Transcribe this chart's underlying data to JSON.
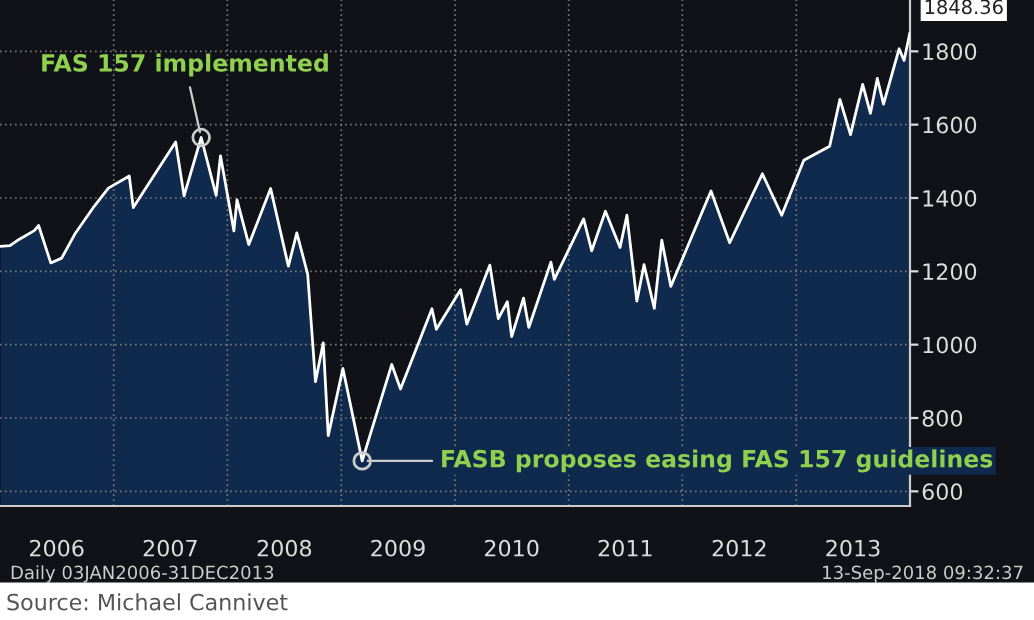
{
  "chart_data": {
    "type": "area",
    "x": [
      "2006-01-03",
      "2006-02-02",
      "2006-03-03",
      "2006-04-21",
      "2006-05-05",
      "2006-06-13",
      "2006-07-18",
      "2006-08-31",
      "2006-10-31",
      "2006-12-15",
      "2007-02-20",
      "2007-03-05",
      "2007-07-19",
      "2007-08-15",
      "2007-10-09",
      "2007-11-26",
      "2007-12-10",
      "2008-01-22",
      "2008-02-01",
      "2008-03-10",
      "2008-05-19",
      "2008-07-15",
      "2008-08-11",
      "2008-09-15",
      "2008-10-10",
      "2008-11-04",
      "2008-11-20",
      "2009-01-06",
      "2009-03-09",
      "2009-06-12",
      "2009-07-10",
      "2009-10-19",
      "2009-11-02",
      "2010-01-19",
      "2010-02-08",
      "2010-04-23",
      "2010-05-20",
      "2010-06-18",
      "2010-07-02",
      "2010-08-09",
      "2010-08-26",
      "2010-11-05",
      "2010-11-16",
      "2011-02-18",
      "2011-03-16",
      "2011-04-29",
      "2011-06-15",
      "2011-07-07",
      "2011-08-08",
      "2011-08-31",
      "2011-10-03",
      "2011-10-27",
      "2011-11-25",
      "2012-04-02",
      "2012-06-01",
      "2012-09-14",
      "2012-11-15",
      "2013-01-25",
      "2013-04-18",
      "2013-05-21",
      "2013-06-24",
      "2013-08-02",
      "2013-08-27",
      "2013-09-18",
      "2013-10-08",
      "2013-11-27",
      "2013-12-13",
      "2013-12-31"
    ],
    "series": [
      {
        "color": "#ffffff",
        "values": [
          1268,
          1270,
          1287,
          1311,
          1325,
          1223,
          1236,
          1304,
          1378,
          1427,
          1460,
          1374,
          1553,
          1406,
          1565,
          1407,
          1515,
          1310,
          1395,
          1273,
          1426,
          1214,
          1305,
          1192,
          899,
          1005,
          752,
          935,
          683,
          946,
          879,
          1098,
          1042,
          1150,
          1056,
          1217,
          1071,
          1117,
          1022,
          1127,
          1047,
          1225,
          1178,
          1343,
          1256,
          1364,
          1265,
          1353,
          1119,
          1218,
          1099,
          1285,
          1159,
          1419,
          1278,
          1466,
          1353,
          1503,
          1541,
          1669,
          1573,
          1710,
          1631,
          1726,
          1656,
          1807,
          1775,
          1848.36
        ]
      }
    ],
    "xlim": [
      "2006-01-01",
      "2014-01-01"
    ],
    "xticks": [
      {
        "value": "2006-07-02",
        "label": "2006"
      },
      {
        "value": "2007-01-01",
        "label": null
      },
      {
        "value": "2007-07-02",
        "label": "2007"
      },
      {
        "value": "2008-01-01",
        "label": null
      },
      {
        "value": "2008-07-02",
        "label": "2008"
      },
      {
        "value": "2009-01-01",
        "label": null
      },
      {
        "value": "2009-07-02",
        "label": "2009"
      },
      {
        "value": "2010-01-01",
        "label": null
      },
      {
        "value": "2010-07-02",
        "label": "2010"
      },
      {
        "value": "2011-01-01",
        "label": null
      },
      {
        "value": "2011-07-02",
        "label": "2011"
      },
      {
        "value": "2012-01-01",
        "label": null
      },
      {
        "value": "2012-07-02",
        "label": "2012"
      },
      {
        "value": "2013-01-01",
        "label": null
      },
      {
        "value": "2013-07-02",
        "label": "2013"
      }
    ],
    "ylim": [
      560,
      1940
    ],
    "yticks": [
      600,
      800,
      1000,
      1200,
      1400,
      1600,
      1800
    ],
    "grid": true,
    "annotations": [
      {
        "text": "FAS 157 implemented",
        "x": "2007-10-09",
        "y": 1565
      },
      {
        "text": "FASB proposes easing FAS 157 guidelines",
        "x": "2009-03-09",
        "y": 683
      },
      {
        "text": "1848.36",
        "x": "2013-12-31",
        "y": 1848.36
      },
      "Daily 03JAN2006-31DEC2013",
      "13-Sep-2018 09:32:37",
      "Source: Michael Cannivet"
    ]
  }
}
